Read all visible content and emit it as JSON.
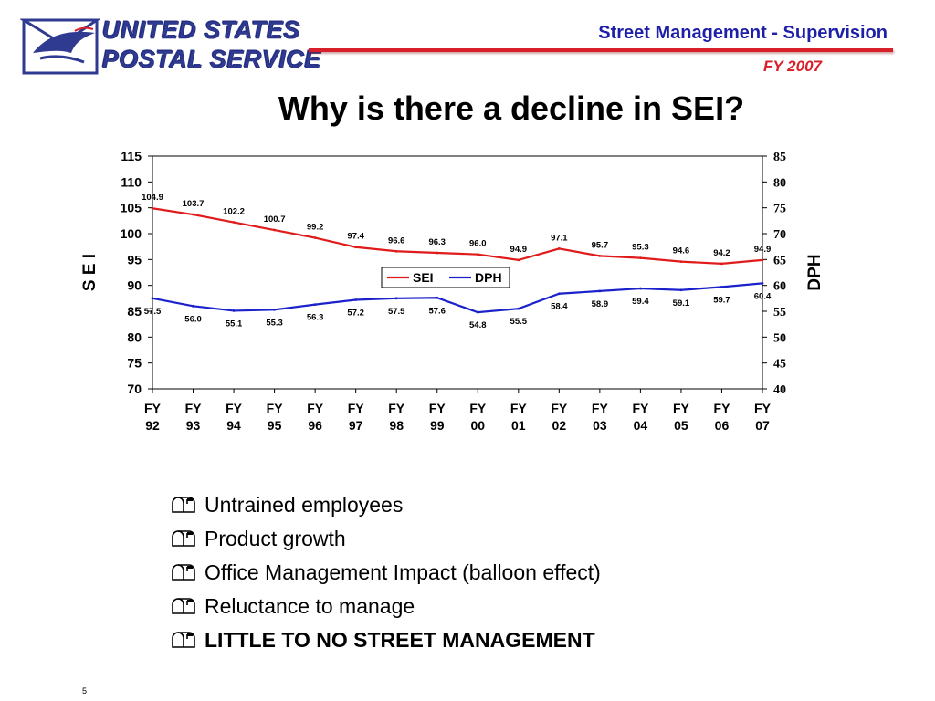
{
  "header": {
    "logo_line1": "UNITED STATES",
    "logo_line2": "POSTAL SERVICE",
    "title": "Street Management - Supervision",
    "year": "FY 2007",
    "accent_color": "#d8202a",
    "brand_color": "#2f3a91",
    "title_color": "#1d1fa8"
  },
  "slide": {
    "title": "Why is there a decline in SEI?",
    "page_number": "5"
  },
  "chart_data": {
    "type": "line",
    "categories": [
      [
        "FY",
        "92"
      ],
      [
        "FY",
        "93"
      ],
      [
        "FY",
        "94"
      ],
      [
        "FY",
        "95"
      ],
      [
        "FY",
        "96"
      ],
      [
        "FY",
        "97"
      ],
      [
        "FY",
        "98"
      ],
      [
        "FY",
        "99"
      ],
      [
        "FY",
        "00"
      ],
      [
        "FY",
        "01"
      ],
      [
        "FY",
        "02"
      ],
      [
        "FY",
        "03"
      ],
      [
        "FY",
        "04"
      ],
      [
        "FY",
        "05"
      ],
      [
        "FY",
        "06"
      ],
      [
        "FY",
        "07"
      ]
    ],
    "series": [
      {
        "name": "SEI",
        "axis": "left",
        "color": "#e01b1b",
        "values": [
          104.9,
          103.7,
          102.2,
          100.7,
          99.2,
          97.4,
          96.6,
          96.3,
          96.0,
          94.9,
          97.1,
          95.7,
          95.3,
          94.6,
          94.2,
          94.9
        ],
        "labels": [
          "104.9",
          "103.7",
          "102.2",
          "100.7",
          "99.2",
          "97.4",
          "96.6",
          "96.3",
          "96.0",
          "94.9",
          "97.1",
          "95.7",
          "95.3",
          "94.6",
          "94.2",
          "94.9"
        ]
      },
      {
        "name": "DPH",
        "axis": "right",
        "color": "#1b22cc",
        "values": [
          57.5,
          56.0,
          55.1,
          55.3,
          56.3,
          57.2,
          57.5,
          57.6,
          54.8,
          55.5,
          58.4,
          58.9,
          59.4,
          59.1,
          59.7,
          60.4
        ],
        "labels": [
          "57.5",
          "56.0",
          "55.1",
          "55.3",
          "56.3",
          "57.2",
          "57.5",
          "57.6",
          "54.8",
          "55.5",
          "58.4",
          "58.9",
          "59.4",
          "59.1",
          "59.7",
          "60.4"
        ]
      }
    ],
    "ylabel": "S E I",
    "y2label": "DPH",
    "ylim": [
      70,
      115
    ],
    "yticks": [
      "70",
      "75",
      "80",
      "85",
      "90",
      "95",
      "100",
      "105",
      "110",
      "115"
    ],
    "y2lim": [
      40,
      85
    ],
    "y2ticks": [
      "40",
      "45",
      "50",
      "55",
      "60",
      "65",
      "70",
      "75",
      "80",
      "85"
    ],
    "grid": false,
    "legend": "center"
  },
  "bullets": [
    {
      "text": "Untrained employees",
      "bold": false,
      "icon": "mailbox-icon"
    },
    {
      "text": "Product growth",
      "bold": false,
      "icon": "mailbox-icon"
    },
    {
      "text": "Office Management Impact (balloon effect)",
      "bold": false,
      "icon": "mailbox-icon"
    },
    {
      "text": "Reluctance to manage",
      "bold": false,
      "icon": "mailbox-icon"
    },
    {
      "text": "LITTLE TO NO STREET MANAGEMENT",
      "bold": true,
      "icon": "mailbox-icon"
    }
  ]
}
